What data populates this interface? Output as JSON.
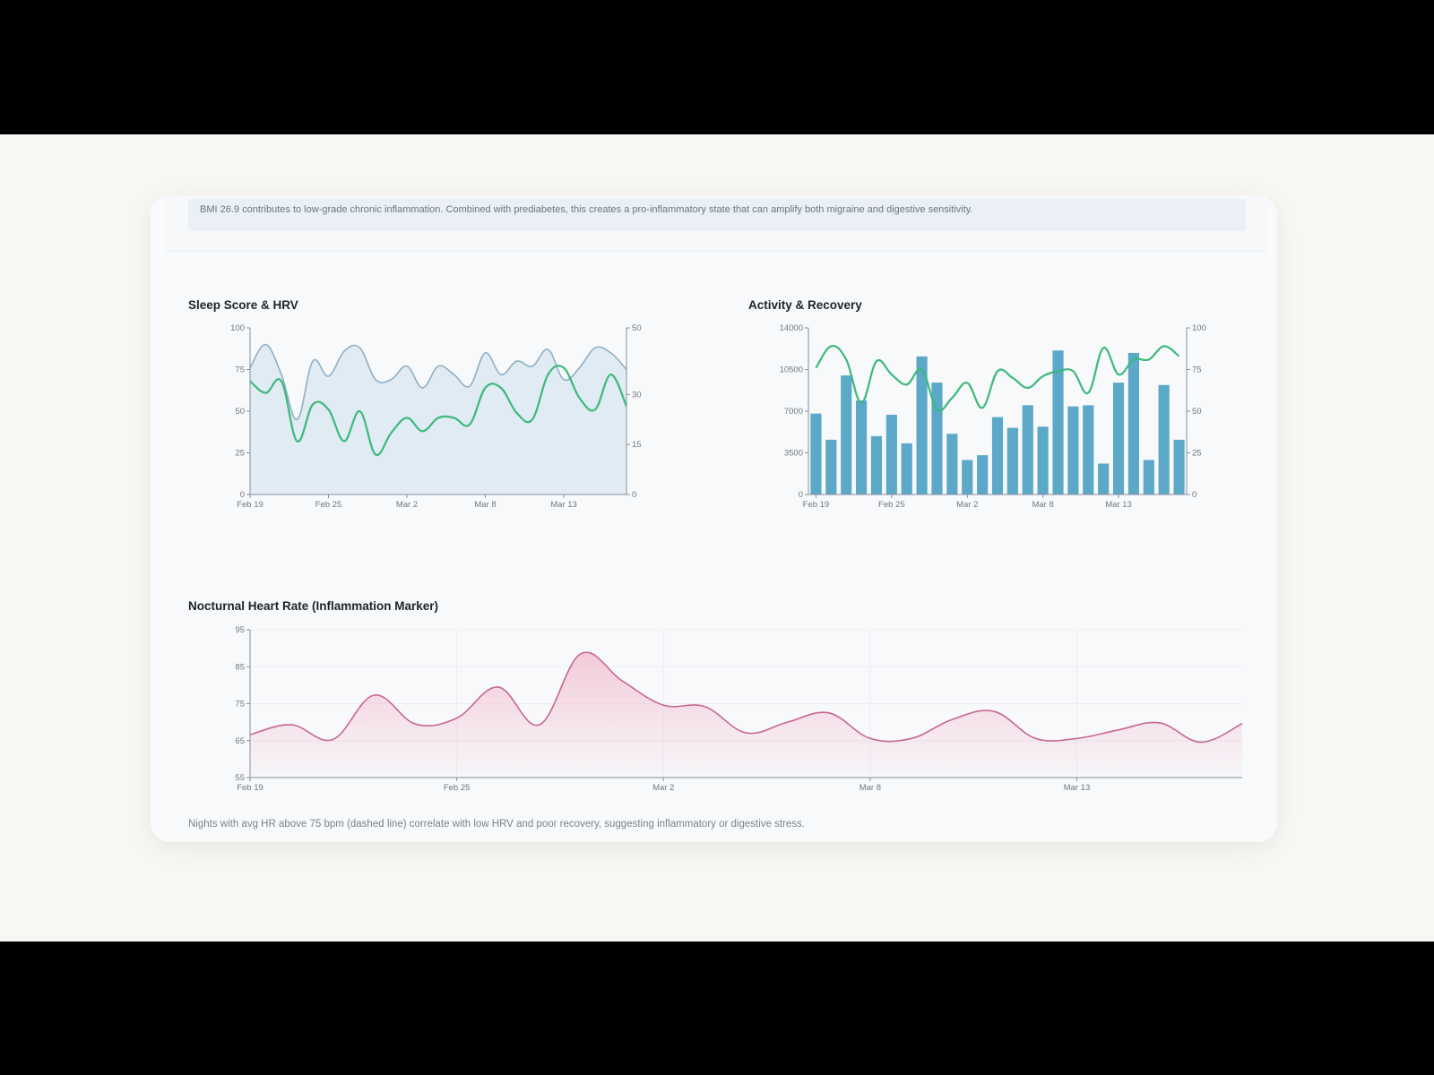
{
  "note_text": "BMI 26.9 contributes to low-grade chronic inflammation. Combined with prediabetes, this creates a pro-inflammatory state that can amplify both migraine and digestive sensitivity.",
  "footnote": "Nights with avg HR above 75 bpm (dashed line) correlate with low HRV and poor recovery, suggesting inflammatory or digestive stress.",
  "colors": {
    "sleep_line": "#8fb0c4",
    "sleep_fill": "#dce9f2",
    "hrv_line": "#3cb97a",
    "bars": "#5ba8c9",
    "recovery_line": "#3cb97a",
    "hr_line": "#c8678d",
    "hr_fill": "#f3c6d6"
  },
  "chart_data": [
    {
      "type": "area",
      "title": "Sleep Score & HRV",
      "x_ticks": [
        "Feb 19",
        "Feb 25",
        "Mar 2",
        "Mar 8",
        "Mar 13"
      ],
      "x_tick_index": [
        0,
        5,
        10,
        15,
        20
      ],
      "y_left": {
        "range": [
          0,
          100
        ],
        "ticks": [
          0,
          25,
          50,
          75,
          100
        ]
      },
      "y_right": {
        "range": [
          0,
          50
        ],
        "ticks": [
          0,
          15,
          30,
          50
        ]
      },
      "series": [
        {
          "axis": "left",
          "style": "area",
          "values": [
            76,
            90,
            72,
            45,
            80,
            71,
            86,
            88,
            69,
            69,
            77,
            64,
            77,
            72,
            65,
            85,
            72,
            80,
            77,
            87,
            69,
            76,
            88,
            85,
            75
          ]
        },
        {
          "axis": "right",
          "style": "line",
          "values": [
            34,
            30.5,
            34,
            16,
            27,
            25.5,
            16,
            25,
            12,
            18.5,
            23,
            19,
            23,
            23,
            21,
            32,
            32,
            24.5,
            22.5,
            36,
            38,
            29,
            25.5,
            36,
            26.5
          ]
        }
      ],
      "grid": false
    },
    {
      "type": "bar",
      "title": "Activity & Recovery",
      "x_ticks": [
        "Feb 19",
        "Feb 25",
        "Mar 2",
        "Mar 8",
        "Mar 13"
      ],
      "x_tick_index": [
        0,
        5,
        10,
        15,
        20
      ],
      "y_left": {
        "range": [
          0,
          14000
        ],
        "ticks": [
          0,
          3500,
          7000,
          10500,
          14000
        ]
      },
      "y_right": {
        "range": [
          0,
          100
        ],
        "ticks": [
          0,
          25,
          50,
          75,
          100
        ]
      },
      "series": [
        {
          "axis": "left",
          "style": "bar",
          "values": [
            6800,
            4600,
            10000,
            7900,
            4900,
            6700,
            4300,
            11600,
            9400,
            5100,
            2900,
            3300,
            6500,
            5600,
            7500,
            5700,
            12100,
            7400,
            7500,
            2600,
            9400,
            11900,
            2900,
            9200,
            4600
          ]
        },
        {
          "axis": "right",
          "style": "line",
          "values": [
            76,
            89,
            81,
            55,
            80,
            72,
            66,
            75,
            51,
            58,
            67,
            52,
            74,
            70,
            64,
            71,
            74,
            74,
            61,
            88,
            72,
            81,
            81,
            89,
            83
          ]
        }
      ],
      "grid": false
    },
    {
      "type": "area",
      "title": "Nocturnal Heart Rate (Inflammation Marker)",
      "x_ticks": [
        "Feb 19",
        "Feb 25",
        "Mar 2",
        "Mar 8",
        "Mar 13"
      ],
      "x_tick_index": [
        0,
        5,
        10,
        15,
        20
      ],
      "y_left": {
        "range": [
          55,
          95
        ],
        "ticks": [
          55,
          65,
          75,
          85,
          95
        ]
      },
      "series": [
        {
          "axis": "left",
          "style": "area",
          "values": [
            66.6,
            69.3,
            65.3,
            77.3,
            69.5,
            71.1,
            79.5,
            69.3,
            88.5,
            81.2,
            74.6,
            74.2,
            67.1,
            70,
            72.5,
            65.6,
            65.6,
            70.8,
            72.9,
            65.6,
            65.6,
            67.9,
            69.8,
            64.6,
            69.6
          ]
        }
      ],
      "grid": true
    }
  ]
}
